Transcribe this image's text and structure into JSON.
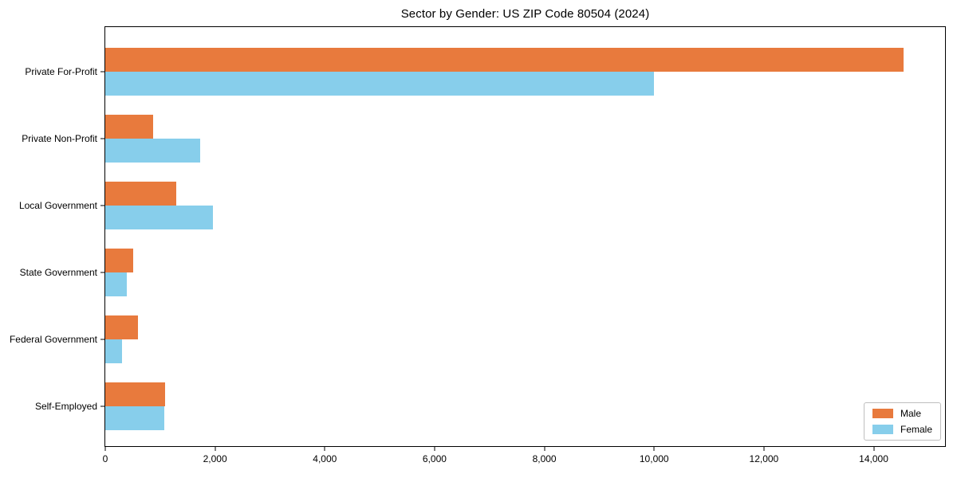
{
  "chart_data": {
    "type": "bar",
    "orientation": "horizontal",
    "title": "Sector by Gender: US ZIP Code 80504 (2024)",
    "categories": [
      "Private For-Profit",
      "Private Non-Profit",
      "Local Government",
      "State Government",
      "Federal Government",
      "Self-Employed"
    ],
    "series": [
      {
        "name": "Male",
        "color": "#e87a3d",
        "values": [
          14540,
          870,
          1290,
          510,
          600,
          1090
        ]
      },
      {
        "name": "Female",
        "color": "#87ceeb",
        "values": [
          10000,
          1730,
          1960,
          390,
          300,
          1070
        ]
      }
    ],
    "xlabel": "",
    "ylabel": "",
    "xlim": [
      0,
      15300
    ],
    "xticks": [
      0,
      2000,
      4000,
      6000,
      8000,
      10000,
      12000,
      14000
    ],
    "xtick_labels": [
      "0",
      "2,000",
      "4,000",
      "6,000",
      "8,000",
      "10,000",
      "12,000",
      "14,000"
    ],
    "grid": false,
    "legend_position": "lower right",
    "legend": {
      "entries": [
        "Male",
        "Female"
      ]
    },
    "colors": {
      "male": "#e87a3d",
      "female": "#87ceeb",
      "spine": "#000000",
      "background": "#ffffff"
    }
  }
}
